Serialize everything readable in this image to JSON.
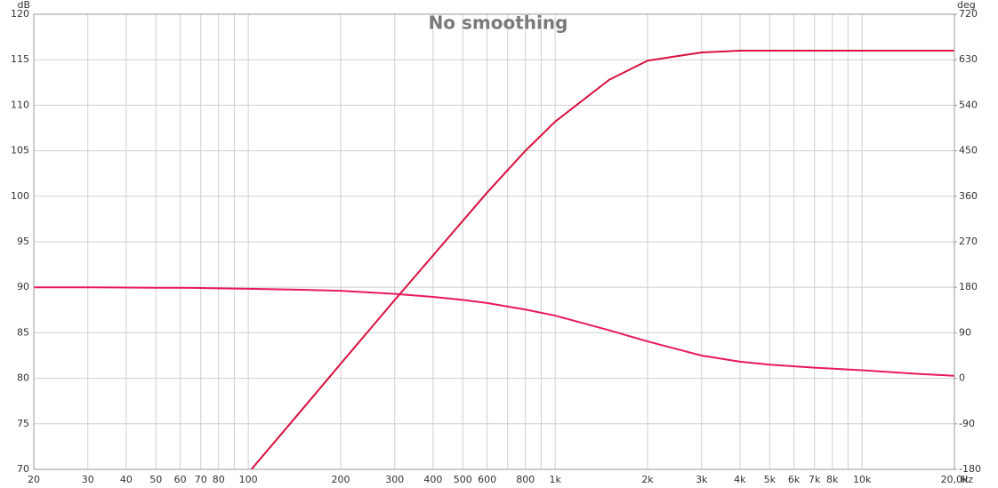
{
  "chart_data": {
    "type": "line",
    "title": "No smoothing",
    "x_unit": "Hz",
    "y_unit": "dB",
    "y2_unit": "deg",
    "log_x": true,
    "grid": true,
    "x": [
      20,
      30,
      40,
      50,
      60,
      70,
      80,
      100,
      150,
      200,
      300,
      400,
      500,
      600,
      800,
      1000,
      1500,
      2000,
      3000,
      4000,
      5000,
      7000,
      10000,
      15000,
      20000
    ],
    "series": [
      {
        "color": "#d8103f",
        "values": [
          null,
          null,
          null,
          null,
          null,
          null,
          null,
          69.6,
          76.6,
          81.6,
          88.6,
          93.5,
          97.3,
          100.4,
          105,
          108.2,
          112.8,
          114.9,
          115.8,
          116,
          116,
          116,
          116,
          116,
          116
        ]
      },
      {
        "color": "#e8185a",
        "axis": "y2",
        "values": [
          180,
          180,
          179.5,
          179,
          179,
          178.5,
          178,
          177,
          175,
          173,
          167,
          161,
          155,
          149,
          136,
          124,
          95,
          73,
          45,
          33,
          27,
          21,
          16,
          9,
          5
        ]
      }
    ],
    "xlim": [
      20,
      20000
    ],
    "xticks": [
      20,
      30,
      40,
      50,
      60,
      70,
      80,
      100,
      200,
      300,
      400,
      500,
      600,
      800,
      {
        "value": 1000,
        "label": "1k"
      },
      {
        "value": 2000,
        "label": "2k"
      },
      {
        "value": 3000,
        "label": "3k"
      },
      {
        "value": 4000,
        "label": "4k"
      },
      {
        "value": 5000,
        "label": "5k"
      },
      {
        "value": 6000,
        "label": "6k"
      },
      {
        "value": 7000,
        "label": "7k"
      },
      {
        "value": 8000,
        "label": "8k"
      },
      {
        "value": 10000,
        "label": "10k"
      },
      {
        "value": 20000,
        "label": "20,0k"
      }
    ],
    "xminorticks": [
      90,
      700,
      900,
      9000
    ],
    "ylim": [
      70,
      120
    ],
    "yticks": [
      70,
      75,
      80,
      85,
      90,
      95,
      100,
      105,
      110,
      115,
      120
    ],
    "y2lim": [
      -180,
      720
    ],
    "y2ticks": [
      -180,
      -90,
      0,
      90,
      180,
      270,
      360,
      450,
      540,
      630,
      720
    ]
  }
}
